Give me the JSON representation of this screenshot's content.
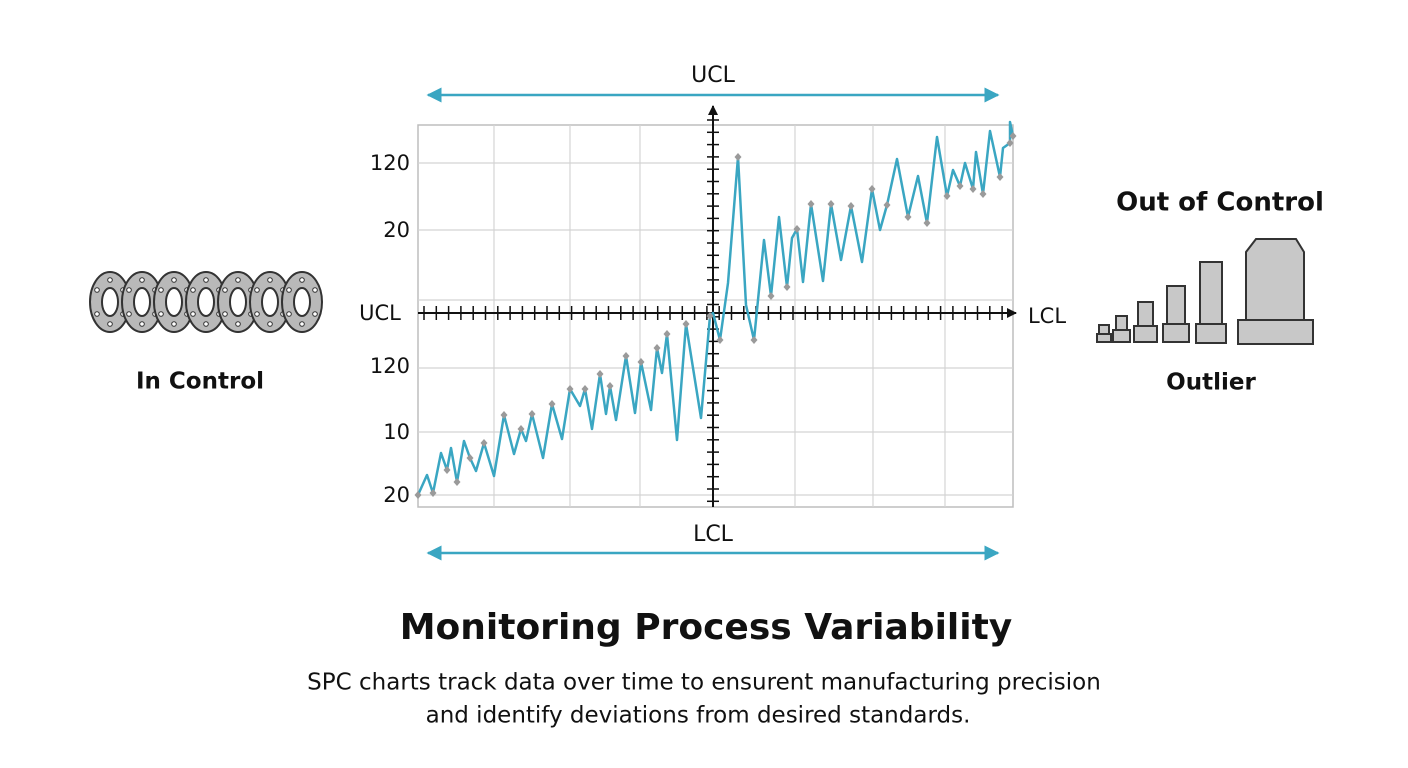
{
  "diagram": {
    "top_label": "UCL",
    "bottom_label": "LCL",
    "axis_left_label": "UCL",
    "axis_right_label": "LCL",
    "y_labels_upper": [
      "120",
      "20"
    ],
    "y_labels_lower": [
      "120",
      "10",
      "20"
    ],
    "left_caption": "In Control",
    "right_title": "Out of Control",
    "right_caption": "Outlier",
    "title": "Monitoring Process Variability",
    "subtitle": [
      "SPC charts track data over time to ensurent manufacturing precision",
      "and identify deviations from desired standards."
    ]
  }
}
